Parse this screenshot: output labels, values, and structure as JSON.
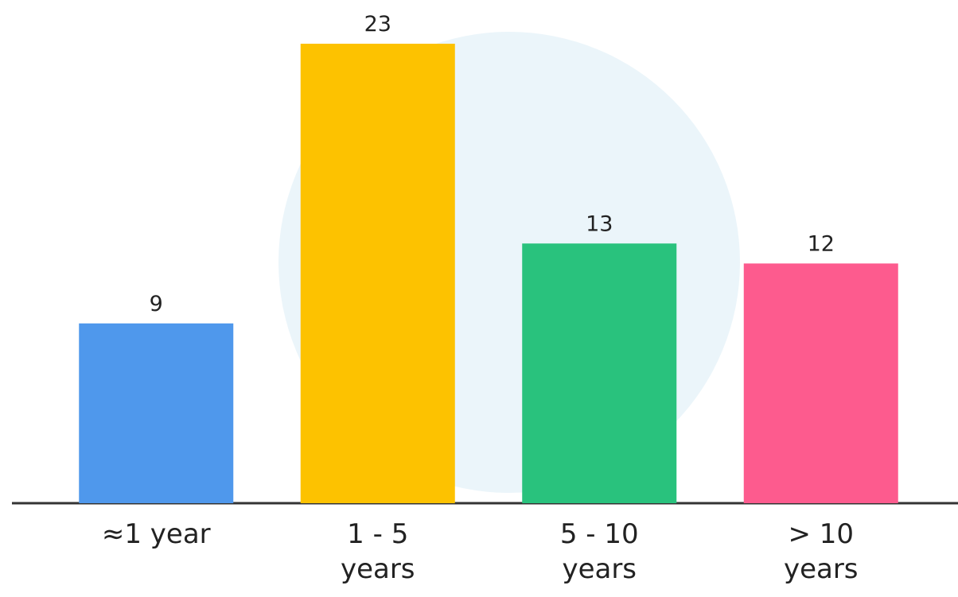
{
  "chart_data": {
    "type": "bar",
    "categories": [
      "≈1 year",
      "1 - 5 years",
      "5 - 10 years",
      "> 10 years"
    ],
    "values": [
      9,
      23,
      13,
      12
    ],
    "colors": [
      "#4f98ec",
      "#fdc200",
      "#29c27d",
      "#fd5b8e"
    ]
  }
}
